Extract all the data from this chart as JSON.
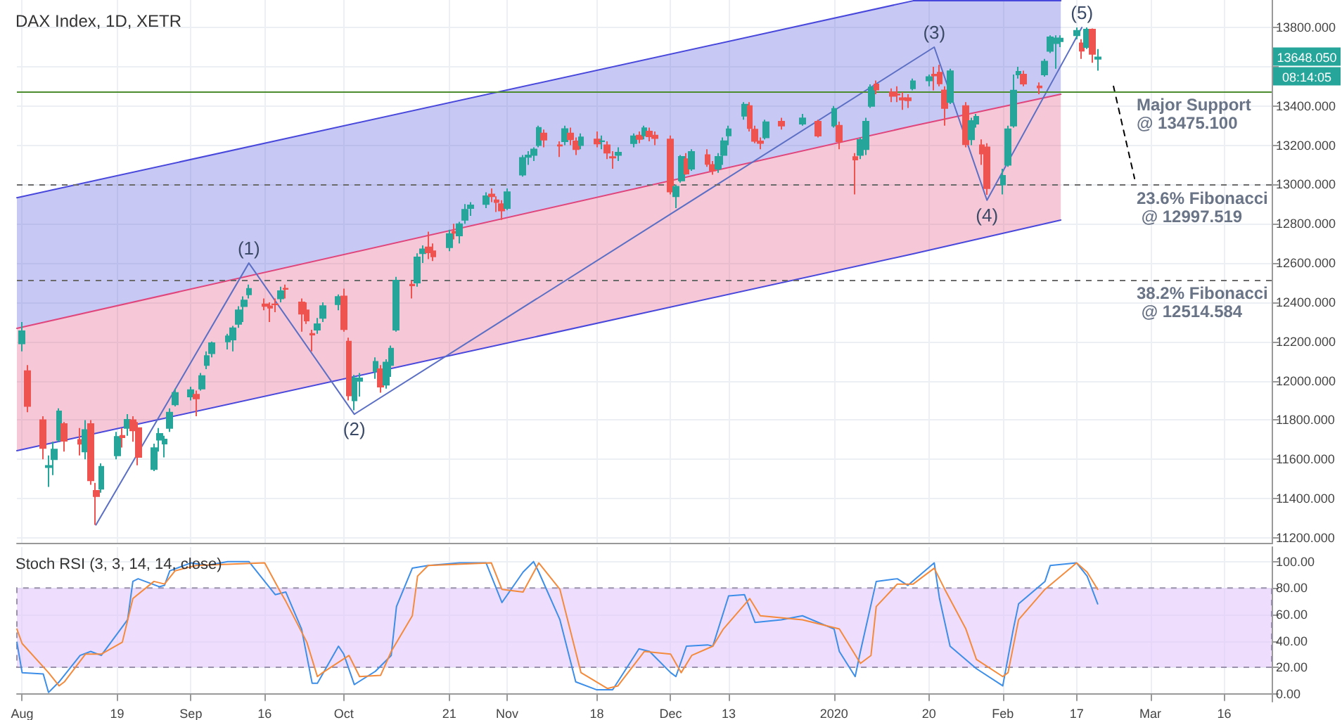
{
  "chart_data": [
    {
      "type": "candlestick",
      "title": "DAX Index, 1D, XETR",
      "x": [
        "2019-08-01",
        "2019-08-02",
        "2019-08-05",
        "2019-08-06",
        "2019-08-07",
        "2019-08-08",
        "2019-08-09",
        "2019-08-12",
        "2019-08-13",
        "2019-08-14",
        "2019-08-15",
        "2019-08-16",
        "2019-08-19",
        "2019-08-20",
        "2019-08-21",
        "2019-08-22",
        "2019-08-23",
        "2019-08-26",
        "2019-08-27",
        "2019-08-28",
        "2019-08-29",
        "2019-08-30",
        "2019-09-02",
        "2019-09-03",
        "2019-09-04",
        "2019-09-05",
        "2019-09-06",
        "2019-09-09",
        "2019-09-10",
        "2019-09-11",
        "2019-09-12",
        "2019-09-13",
        "2019-09-16",
        "2019-09-17",
        "2019-09-18",
        "2019-09-19",
        "2019-09-20",
        "2019-09-23",
        "2019-09-24",
        "2019-09-25",
        "2019-09-26",
        "2019-09-27",
        "2019-09-30",
        "2019-10-01",
        "2019-10-02",
        "2019-10-03",
        "2019-10-04",
        "2019-10-07",
        "2019-10-08",
        "2019-10-09",
        "2019-10-10",
        "2019-10-11",
        "2019-10-14",
        "2019-10-15",
        "2019-10-16",
        "2019-10-17",
        "2019-10-18",
        "2019-10-21",
        "2019-10-22",
        "2019-10-23",
        "2019-10-24",
        "2019-10-25",
        "2019-10-28",
        "2019-10-29",
        "2019-10-30",
        "2019-10-31",
        "2019-11-01",
        "2019-11-04",
        "2019-11-05",
        "2019-11-06",
        "2019-11-07",
        "2019-11-08",
        "2019-11-11",
        "2019-11-12",
        "2019-11-13",
        "2019-11-14",
        "2019-11-15",
        "2019-11-18",
        "2019-11-19",
        "2019-11-20",
        "2019-11-21",
        "2019-11-22",
        "2019-11-25",
        "2019-11-26",
        "2019-11-27",
        "2019-11-28",
        "2019-11-29",
        "2019-12-02",
        "2019-12-03",
        "2019-12-04",
        "2019-12-05",
        "2019-12-06",
        "2019-12-09",
        "2019-12-10",
        "2019-12-11",
        "2019-12-12",
        "2019-12-13",
        "2019-12-16",
        "2019-12-17",
        "2019-12-18",
        "2019-12-19",
        "2019-12-20",
        "2019-12-23",
        "2019-12-27",
        "2019-12-30",
        "2020-01-02",
        "2020-01-03",
        "2020-01-06",
        "2020-01-07",
        "2020-01-08",
        "2020-01-09",
        "2020-01-10",
        "2020-01-13",
        "2020-01-14",
        "2020-01-15",
        "2020-01-16",
        "2020-01-17",
        "2020-01-20",
        "2020-01-21",
        "2020-01-22",
        "2020-01-23",
        "2020-01-24",
        "2020-01-27",
        "2020-01-28",
        "2020-01-29",
        "2020-01-30",
        "2020-01-31",
        "2020-02-03",
        "2020-02-04",
        "2020-02-05",
        "2020-02-06",
        "2020-02-07",
        "2020-02-10",
        "2020-02-11",
        "2020-02-12",
        "2020-02-13",
        "2020-02-14",
        "2020-02-17",
        "2020-02-18",
        "2020-02-19",
        "2020-02-20",
        "2020-02-21"
      ],
      "series": [
        {
          "ohlc": [
            [
              12190,
              12300,
              12150,
              12253
            ],
            [
              12050,
              12080,
              11840,
              11872
            ],
            [
              11800,
              11820,
              11600,
              11658
            ],
            [
              11560,
              11620,
              11460,
              11567
            ],
            [
              11600,
              11690,
              11520,
              11650
            ],
            [
              11700,
              11860,
              11690,
              11845
            ],
            [
              11780,
              11790,
              11640,
              11694
            ],
            [
              11700,
              11760,
              11620,
              11679
            ],
            [
              11640,
              11800,
              11600,
              11750
            ],
            [
              11780,
              11800,
              11470,
              11493
            ],
            [
              11440,
              11480,
              11266,
              11412
            ],
            [
              11450,
              11580,
              11430,
              11563
            ],
            [
              11620,
              11740,
              11600,
              11715
            ],
            [
              11720,
              11760,
              11660,
              11712
            ],
            [
              11760,
              11830,
              11720,
              11802
            ],
            [
              11800,
              11820,
              11690,
              11747
            ],
            [
              11760,
              11790,
              11570,
              11612
            ],
            [
              11550,
              11680,
              11540,
              11658
            ],
            [
              11700,
              11760,
              11640,
              11730
            ],
            [
              11680,
              11720,
              11610,
              11701
            ],
            [
              11760,
              11860,
              11740,
              11838
            ],
            [
              11880,
              11960,
              11870,
              11939
            ],
            [
              11920,
              11970,
              11900,
              11953
            ],
            [
              11930,
              11950,
              11820,
              11910
            ],
            [
              11960,
              12040,
              11950,
              12025
            ],
            [
              12080,
              12150,
              12060,
              12127
            ],
            [
              12140,
              12200,
              12120,
              12192
            ],
            [
              12200,
              12240,
              12160,
              12227
            ],
            [
              12210,
              12280,
              12150,
              12268
            ],
            [
              12290,
              12380,
              12270,
              12360
            ],
            [
              12380,
              12430,
              12300,
              12410
            ],
            [
              12440,
              12490,
              12420,
              12469
            ],
            [
              12390,
              12420,
              12360,
              12381
            ],
            [
              12380,
              12400,
              12300,
              12372
            ],
            [
              12390,
              12420,
              12350,
              12389
            ],
            [
              12420,
              12480,
              12400,
              12457
            ],
            [
              12470,
              12490,
              12420,
              12468
            ],
            [
              12400,
              12420,
              12250,
              12342
            ],
            [
              12360,
              12400,
              12290,
              12307
            ],
            [
              12240,
              12260,
              12150,
              12235
            ],
            [
              12260,
              12320,
              12240,
              12289
            ],
            [
              12320,
              12400,
              12300,
              12381
            ],
            [
              12390,
              12440,
              12360,
              12428
            ],
            [
              12430,
              12470,
              12250,
              12263
            ],
            [
              12200,
              12220,
              11900,
              11925
            ],
            [
              11900,
              12030,
              11850,
              12014
            ],
            [
              12000,
              12040,
              11920,
              12013
            ],
            [
              12050,
              12120,
              12010,
              12097
            ],
            [
              12060,
              12080,
              11940,
              11970
            ],
            [
              11980,
              12110,
              11960,
              12094
            ],
            [
              12080,
              12180,
              12020,
              12164
            ],
            [
              12260,
              12530,
              12250,
              12511
            ],
            [
              12490,
              12510,
              12420,
              12486
            ],
            [
              12500,
              12650,
              12480,
              12629
            ],
            [
              12650,
              12690,
              12600,
              12670
            ],
            [
              12680,
              12760,
              12620,
              12654
            ],
            [
              12660,
              12700,
              12610,
              12634
            ],
            [
              12680,
              12770,
              12660,
              12748
            ],
            [
              12760,
              12800,
              12720,
              12754
            ],
            [
              12740,
              12810,
              12700,
              12798
            ],
            [
              12820,
              12900,
              12800,
              12872
            ],
            [
              12880,
              12910,
              12840,
              12894
            ],
            [
              12900,
              12960,
              12880,
              12941
            ],
            [
              12950,
              12980,
              12910,
              12940
            ],
            [
              12920,
              12940,
              12860,
              12910
            ],
            [
              12900,
              12920,
              12820,
              12867
            ],
            [
              12880,
              12980,
              12870,
              12961
            ],
            [
              13050,
              13150,
              13040,
              13136
            ],
            [
              13140,
              13170,
              13100,
              13148
            ],
            [
              13150,
              13190,
              13120,
              13179
            ],
            [
              13200,
              13300,
              13190,
              13289
            ],
            [
              13260,
              13280,
              13190,
              13228
            ],
            [
              13200,
              13220,
              13140,
              13198
            ],
            [
              13220,
              13300,
              13200,
              13283
            ],
            [
              13260,
              13290,
              13200,
              13230
            ],
            [
              13220,
              13240,
              13150,
              13180
            ],
            [
              13200,
              13260,
              13180,
              13241
            ],
            [
              13230,
              13270,
              13190,
              13208
            ],
            [
              13220,
              13250,
              13180,
              13221
            ],
            [
              13200,
              13220,
              13130,
              13162
            ],
            [
              13140,
              13170,
              13080,
              13137
            ],
            [
              13150,
              13190,
              13120,
              13163
            ],
            [
              13210,
              13260,
              13190,
              13246
            ],
            [
              13250,
              13270,
              13210,
              13232
            ],
            [
              13250,
              13300,
              13230,
              13287
            ],
            [
              13270,
              13290,
              13220,
              13245
            ],
            [
              13250,
              13270,
              13200,
              13236
            ],
            [
              13230,
              13250,
              12950,
              12964
            ],
            [
              12940,
              13000,
              12880,
              12989
            ],
            [
              13020,
              13150,
              13010,
              13141
            ],
            [
              13130,
              13160,
              13050,
              13055
            ],
            [
              13080,
              13180,
              13070,
              13166
            ],
            [
              13150,
              13180,
              13090,
              13105
            ],
            [
              13100,
              13120,
              13050,
              13071
            ],
            [
              13080,
              13160,
              13060,
              13141
            ],
            [
              13150,
              13240,
              13100,
              13221
            ],
            [
              13250,
              13300,
              13200,
              13282
            ],
            [
              13350,
              13420,
              13330,
              13407
            ],
            [
              13400,
              13420,
              13270,
              13287
            ],
            [
              13280,
              13300,
              13210,
              13222
            ],
            [
              13220,
              13240,
              13180,
              13211
            ],
            [
              13240,
              13330,
              13230,
              13318
            ],
            [
              13320,
              13340,
              13280,
              13300
            ],
            [
              13310,
              13360,
              13300,
              13337
            ],
            [
              13320,
              13330,
              13240,
              13249
            ],
            [
              13300,
              13400,
              13290,
              13386
            ],
            [
              13300,
              13320,
              13180,
              13219
            ],
            [
              13140,
              13160,
              12950,
              13127
            ],
            [
              13150,
              13240,
              13130,
              13227
            ],
            [
              13180,
              13340,
              13150,
              13320
            ],
            [
              13400,
              13510,
              13390,
              13495
            ],
            [
              13510,
              13530,
              13460,
              13483
            ],
            [
              13470,
              13490,
              13420,
              13451
            ],
            [
              13460,
              13500,
              13420,
              13457
            ],
            [
              13440,
              13470,
              13380,
              13432
            ],
            [
              13440,
              13460,
              13390,
              13429
            ],
            [
              13490,
              13540,
              13480,
              13526
            ],
            [
              13530,
              13560,
              13500,
              13548
            ],
            [
              13560,
              13600,
              13480,
              13555
            ],
            [
              13570,
              13610,
              13500,
              13515
            ],
            [
              13480,
              13500,
              13300,
              13389
            ],
            [
              13420,
              13590,
              13410,
              13577
            ],
            [
              13400,
              13420,
              13190,
              13205
            ],
            [
              13230,
              13340,
              13200,
              13324
            ],
            [
              13310,
              13360,
              13290,
              13345
            ],
            [
              13200,
              13230,
              13100,
              13157
            ],
            [
              13190,
              13210,
              12948,
              12981
            ],
            [
              13000,
              13080,
              12950,
              13045
            ],
            [
              13100,
              13300,
              13090,
              13282
            ],
            [
              13300,
              13560,
              13290,
              13479
            ],
            [
              13560,
              13600,
              13540,
              13575
            ],
            [
              13560,
              13580,
              13500,
              13514
            ],
            [
              13500,
              13520,
              13460,
              13494
            ],
            [
              13560,
              13640,
              13550,
              13627
            ],
            [
              13680,
              13760,
              13670,
              13750
            ],
            [
              13720,
              13760,
              13590,
              13745
            ],
            [
              13730,
              13760,
              13700,
              13744
            ],
            [
              13760,
              13800,
              13740,
              13783
            ],
            [
              13720,
              13740,
              13640,
              13681
            ],
            [
              13700,
              13800,
              13690,
              13790
            ],
            [
              13790,
              13795,
              13620,
              13665
            ],
            [
              13640,
              13690,
              13580,
              13648.05
            ]
          ]
        },
        {
          "type": "line",
          "color": "#4848dc",
          "x": [
            "2019-07-31",
            "2020-01-17",
            "2020-02-14"
          ],
          "values": [
            12933,
            13936,
            13936
          ],
          "lower": [
            12267,
            13299,
            13460
          ],
          "upper": [
            12933,
            13936,
            13936
          ]
        },
        {
          "type": "line",
          "color": "#e0457b",
          "x": [
            "2019-07-31",
            "2020-01-17",
            "2020-02-14"
          ],
          "values": [
            12267,
            13299,
            13460
          ],
          "lower": [
            11644,
            12647,
            12819
          ],
          "upper": [
            12267,
            13299,
            13460
          ]
        },
        {
          "type": "line",
          "color": "#4848dc",
          "x": [
            "2019-07-31",
            "2020-01-17",
            "2020-02-14"
          ],
          "values": [
            11644,
            12647,
            12819
          ]
        },
        {
          "type": "line",
          "color": "#5b6fc4",
          "x": [
            "2019-08-15",
            "2019-09-13",
            "2019-10-03",
            "2020-01-21",
            "2020-01-31",
            "2020-02-18"
          ],
          "values": [
            11266,
            12600,
            11830,
            13700,
            12920,
            13800
          ]
        },
        {
          "type": "line",
          "color": "#000000",
          "line_style": "dashed",
          "x": [
            "2020-02-24",
            "2020-02-28"
          ],
          "values": [
            13500,
            13030
          ]
        }
      ],
      "ref_lines": [
        {
          "axis": "y",
          "value": 13475.1,
          "label": "Major Support @ 13475.100",
          "color": "#4c8c2f",
          "line_style": "solid"
        },
        {
          "axis": "y",
          "value": 12997.519,
          "label": "23.6% Fibonacci @ 12997.519",
          "color": "#6b6b6b",
          "line_style": "dashed"
        },
        {
          "axis": "y",
          "value": 12514.584,
          "label": "38.2% Fibonacci @ 12514.584",
          "color": "#6b6b6b",
          "line_style": "dashed"
        }
      ],
      "annotations": [
        {
          "text": "(1)",
          "x": "2019-09-13",
          "y": 12600
        },
        {
          "text": "(2)",
          "x": "2019-10-03",
          "y": 11830
        },
        {
          "text": "(3)",
          "x": "2020-01-21",
          "y": 13700
        },
        {
          "text": "(4)",
          "x": "2020-01-31",
          "y": 12920
        },
        {
          "text": "(5)",
          "x": "2020-02-18",
          "y": 13800
        },
        "13648.050",
        "08:14:05"
      ],
      "xlim": [
        "2019-07-31",
        "2020-03-25"
      ],
      "xticks": [
        {
          "value": "2019-08-01",
          "label": "Aug"
        },
        {
          "value": "2019-08-19",
          "label": "19"
        },
        {
          "value": "2019-09-02",
          "label": "Sep"
        },
        {
          "value": "2019-09-16",
          "label": "16"
        },
        {
          "value": "2019-10-01",
          "label": "Oct"
        },
        {
          "value": "2019-10-21",
          "label": "21"
        },
        {
          "value": "2019-11-01",
          "label": "Nov"
        },
        {
          "value": "2019-11-18",
          "label": "18"
        },
        {
          "value": "2019-12-02",
          "label": "Dec"
        },
        {
          "value": "2019-12-13",
          "label": "13"
        },
        {
          "value": "2020-01-02",
          "label": "2020"
        },
        {
          "value": "2020-01-20",
          "label": "20"
        },
        {
          "value": "2020-02-03",
          "label": "Feb"
        },
        {
          "value": "2020-02-17",
          "label": "17"
        },
        {
          "value": "2020-03-02",
          "label": "Mar"
        },
        {
          "value": "2020-03-16",
          "label": "16"
        }
      ],
      "ylim": [
        11170,
        13940
      ],
      "yticks": [
        {
          "value": 11200,
          "label": "11200.000"
        },
        {
          "value": 11400,
          "label": "11400.000"
        },
        {
          "value": 11600,
          "label": "11600.000"
        },
        {
          "value": 11800,
          "label": "11800.000"
        },
        {
          "value": 12000,
          "label": "12000.000"
        },
        {
          "value": 12200,
          "label": "12200.000"
        },
        {
          "value": 12400,
          "label": "12400.000"
        },
        {
          "value": 12600,
          "label": "12600.000"
        },
        {
          "value": 12800,
          "label": "12800.000"
        },
        {
          "value": 13000,
          "label": "13000.000"
        },
        {
          "value": 13200,
          "label": "13200.000"
        },
        {
          "value": 13400,
          "label": "13400.000"
        },
        {
          "value": 13600,
          "label": null
        },
        {
          "value": 13800,
          "label": "13800.000"
        }
      ],
      "tick_labels": "y",
      "grid": true
    },
    {
      "type": "line",
      "title": "Stoch RSI (3, 3, 14, 14, close)",
      "series": [
        {
          "color": "#3d8ee8",
          "x": [
            "2019-07-31",
            "2019-08-01",
            "2019-08-05",
            "2019-08-06",
            "2019-08-08",
            "2019-08-12",
            "2019-08-14",
            "2019-08-16",
            "2019-08-21",
            "2019-08-22",
            "2019-08-23",
            "2019-08-27",
            "2019-08-28",
            "2019-08-29",
            "2019-09-02",
            "2019-09-05",
            "2019-09-09",
            "2019-09-13",
            "2019-09-18",
            "2019-09-20",
            "2019-09-23",
            "2019-09-25",
            "2019-09-26",
            "2019-09-30",
            "2019-10-01",
            "2019-10-03",
            "2019-10-07",
            "2019-10-10",
            "2019-10-11",
            "2019-10-14",
            "2019-10-17",
            "2019-10-23",
            "2019-10-28",
            "2019-10-30",
            "2019-10-31",
            "2019-11-04",
            "2019-11-06",
            "2019-11-07",
            "2019-11-11",
            "2019-11-14",
            "2019-11-18",
            "2019-11-21",
            "2019-11-26",
            "2019-11-28",
            "2019-12-02",
            "2019-12-03",
            "2019-12-05",
            "2019-12-09",
            "2019-12-10",
            "2019-12-13",
            "2019-12-16",
            "2019-12-18",
            "2019-12-23",
            "2019-12-27",
            "2020-01-02",
            "2020-01-03",
            "2020-01-06",
            "2020-01-07",
            "2020-01-10",
            "2020-01-14",
            "2020-01-16",
            "2020-01-21",
            "2020-01-22",
            "2020-01-24",
            "2020-01-29",
            "2020-02-03",
            "2020-02-05",
            "2020-02-06",
            "2020-02-11",
            "2020-02-12",
            "2020-02-17",
            "2020-02-19",
            "2020-02-21"
          ],
          "values": [
            39,
            16,
            15,
            1,
            9,
            29,
            32,
            29,
            56,
            85,
            87,
            81,
            82,
            93,
            99,
            97,
            100,
            100,
            75,
            77,
            49,
            8,
            8,
            36,
            30,
            7,
            17,
            29,
            66,
            95,
            97,
            99,
            99,
            79,
            69,
            92,
            100,
            92,
            56,
            9,
            3,
            3,
            34,
            32,
            16,
            13,
            36,
            37,
            36,
            74,
            75,
            54,
            56,
            59,
            49,
            32,
            13,
            32,
            85,
            87,
            82,
            99,
            72,
            36,
            19,
            6,
            49,
            68,
            85,
            97,
            99,
            89,
            68
          ]
        },
        {
          "color": "#f48a3c",
          "x": [
            "2019-07-31",
            "2019-08-01",
            "2019-08-06",
            "2019-08-08",
            "2019-08-09",
            "2019-08-13",
            "2019-08-16",
            "2019-08-20",
            "2019-08-22",
            "2019-08-26",
            "2019-08-28",
            "2019-08-30",
            "2019-09-03",
            "2019-09-09",
            "2019-09-16",
            "2019-09-19",
            "2019-09-20",
            "2019-09-24",
            "2019-09-26",
            "2019-09-27",
            "2019-10-02",
            "2019-10-04",
            "2019-10-08",
            "2019-10-10",
            "2019-10-14",
            "2019-10-15",
            "2019-10-17",
            "2019-10-29",
            "2019-10-31",
            "2019-11-04",
            "2019-11-07",
            "2019-11-11",
            "2019-11-15",
            "2019-11-20",
            "2019-11-22",
            "2019-11-27",
            "2019-12-02",
            "2019-12-04",
            "2019-12-06",
            "2019-12-10",
            "2019-12-12",
            "2019-12-17",
            "2019-12-19",
            "2019-12-27",
            "2020-01-03",
            "2020-01-07",
            "2020-01-09",
            "2020-01-10",
            "2020-01-14",
            "2020-01-17",
            "2020-01-21",
            "2020-01-23",
            "2020-01-27",
            "2020-01-29",
            "2020-02-03",
            "2020-02-04",
            "2020-02-06",
            "2020-02-11",
            "2020-02-17",
            "2020-02-19",
            "2020-02-21"
          ],
          "values": [
            49,
            38,
            16,
            6,
            9,
            30,
            30,
            39,
            72,
            85,
            83,
            93,
            97,
            98,
            99,
            77,
            70,
            39,
            13,
            16,
            29,
            13,
            14,
            32,
            59,
            89,
            97,
            99,
            79,
            77,
            99,
            79,
            16,
            4,
            6,
            32,
            30,
            16,
            29,
            36,
            49,
            72,
            59,
            56,
            49,
            23,
            29,
            66,
            83,
            83,
            95,
            79,
            49,
            26,
            13,
            16,
            56,
            79,
            99,
            92,
            79
          ]
        }
      ],
      "bands": [
        {
          "axis": "y",
          "from": 20,
          "to": 80,
          "color": "#e2c6fb"
        }
      ],
      "xlim": [
        "2019-07-31",
        "2020-03-25"
      ],
      "xticks": [
        {
          "value": "2019-08-01",
          "label": "Aug"
        },
        {
          "value": "2019-08-19",
          "label": "19"
        },
        {
          "value": "2019-09-02",
          "label": "Sep"
        },
        {
          "value": "2019-09-16",
          "label": "16"
        },
        {
          "value": "2019-10-01",
          "label": "Oct"
        },
        {
          "value": "2019-10-21",
          "label": "21"
        },
        {
          "value": "2019-11-01",
          "label": "Nov"
        },
        {
          "value": "2019-11-18",
          "label": "18"
        },
        {
          "value": "2019-12-02",
          "label": "Dec"
        },
        {
          "value": "2019-12-13",
          "label": "13"
        },
        {
          "value": "2020-01-02",
          "label": "2020"
        },
        {
          "value": "2020-01-20",
          "label": "20"
        },
        {
          "value": "2020-02-03",
          "label": "Feb"
        },
        {
          "value": "2020-02-17",
          "label": "17"
        },
        {
          "value": "2020-03-02",
          "label": "Mar"
        },
        {
          "value": "2020-03-16",
          "label": "16"
        }
      ],
      "ylim": [
        -6,
        111
      ],
      "yticks": [
        {
          "value": 0,
          "label": "0.00"
        },
        {
          "value": 20,
          "label": "20.00"
        },
        {
          "value": 40,
          "label": "40.00"
        },
        {
          "value": 60,
          "label": "60.00"
        },
        {
          "value": 80,
          "label": "80.00"
        },
        {
          "value": 100,
          "label": "100.00"
        }
      ],
      "grid": true
    }
  ]
}
